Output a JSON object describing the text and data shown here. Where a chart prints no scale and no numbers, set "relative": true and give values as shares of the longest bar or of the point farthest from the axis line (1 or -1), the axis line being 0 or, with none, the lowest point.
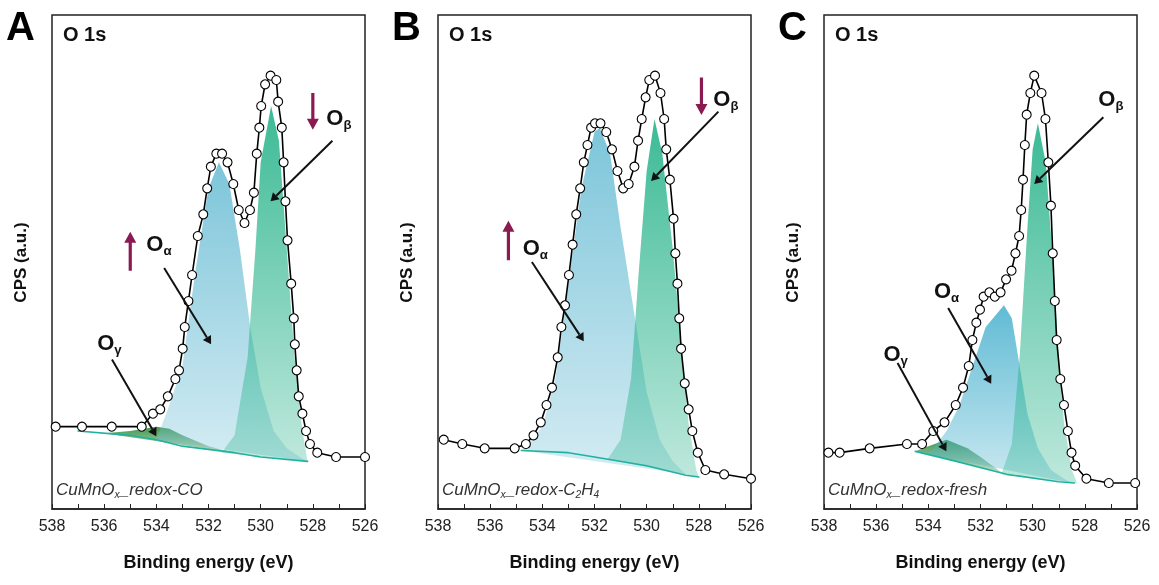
{
  "chart_data": [
    {
      "type": "line",
      "relative": true,
      "title": "O 1s",
      "xlabel": "Binding energy (eV)",
      "ylabel": "CPS (a.u.)",
      "xlim": [
        538,
        526
      ],
      "xticks": [
        538,
        {
          "value": 537,
          "label": null
        },
        536,
        {
          "value": 535,
          "label": null
        },
        534,
        {
          "value": 533,
          "label": null
        },
        532,
        {
          "value": 531,
          "label": null
        },
        530,
        {
          "value": 529,
          "label": null
        },
        528,
        {
          "value": 527,
          "label": null
        },
        526
      ],
      "tick_labels": "x",
      "grid": false,
      "legend": "top",
      "annotations": [
        "A",
        "CuMnO$_{x}$_redox-CO"
      ],
      "series": [
        {
          "type": "line",
          "marker": "none",
          "color": "#20b2a0",
          "x": [
            537,
            535,
            534,
            533,
            531,
            530,
            528.2
          ],
          "values": [
            0.18,
            0.17,
            0.16,
            0.145,
            0.13,
            0.12,
            0.11
          ]
        },
        {
          "type": "area",
          "name": "O$_{γ}$",
          "color": "#2e8b3a",
          "x": [
            536,
            535,
            534,
            533.5,
            533,
            532,
            531
          ],
          "values": [
            0.175,
            0.18,
            0.19,
            0.185,
            0.17,
            0.145,
            0.13
          ]
        },
        {
          "type": "area",
          "name": "O$_{α}$",
          "color": "#6fbfd6",
          "x": [
            534,
            533.5,
            533,
            532.5,
            532,
            531.6,
            531.2,
            530.8,
            530.4,
            530,
            529.5,
            529,
            528.5,
            528.2
          ],
          "values": [
            0.16,
            0.24,
            0.33,
            0.55,
            0.74,
            0.8,
            0.75,
            0.6,
            0.42,
            0.28,
            0.18,
            0.14,
            0.12,
            0.11
          ]
        },
        {
          "type": "area",
          "name": "O$_{β}$",
          "color": "#27b38a",
          "x": [
            531.5,
            531,
            530.5,
            530.2,
            530,
            529.6,
            529.3,
            529,
            528.7,
            528.4,
            528.2
          ],
          "values": [
            0.13,
            0.17,
            0.35,
            0.6,
            0.8,
            0.93,
            0.85,
            0.6,
            0.35,
            0.18,
            0.11
          ]
        },
        {
          "marker": "circle",
          "color": "#000000",
          "x": [
            537.86,
            536.85,
            535.71,
            534.56,
            534.13,
            533.85,
            533.56,
            533.27,
            533.13,
            532.99,
            532.91,
            532.77,
            532.63,
            532.41,
            532.2,
            532.05,
            531.91,
            531.7,
            531.48,
            531.27,
            531.05,
            530.84,
            530.62,
            530.41,
            530.26,
            530.15,
            530.05,
            529.98,
            529.83,
            529.62,
            529.4,
            529.33,
            529.19,
            529.12,
            529.05,
            528.97,
            528.83,
            528.73,
            528.69,
            528.62,
            528.54,
            528.4,
            528.26,
            528.11,
            527.83,
            527.11,
            526
          ],
          "values": [
            0.19,
            0.19,
            0.19,
            0.19,
            0.22,
            0.23,
            0.26,
            0.3,
            0.32,
            0.37,
            0.42,
            0.48,
            0.54,
            0.63,
            0.68,
            0.74,
            0.79,
            0.82,
            0.82,
            0.8,
            0.75,
            0.69,
            0.66,
            0.69,
            0.73,
            0.82,
            0.88,
            0.93,
            0.98,
            1,
            0.99,
            0.94,
            0.88,
            0.8,
            0.71,
            0.62,
            0.52,
            0.44,
            0.38,
            0.32,
            0.26,
            0.22,
            0.18,
            0.15,
            0.13,
            0.12,
            0.12
          ]
        }
      ]
    },
    {
      "type": "line",
      "relative": true,
      "title": "O 1s",
      "xlabel": "Binding energy (eV)",
      "ylabel": "CPS (a.u.)",
      "xlim": [
        538,
        526
      ],
      "xticks": [
        538,
        {
          "value": 537,
          "label": null
        },
        536,
        {
          "value": 535,
          "label": null
        },
        534,
        {
          "value": 533,
          "label": null
        },
        532,
        {
          "value": 531,
          "label": null
        },
        530,
        {
          "value": 529,
          "label": null
        },
        528,
        {
          "value": 527,
          "label": null
        },
        526
      ],
      "tick_labels": "x",
      "grid": false,
      "legend": "top",
      "annotations": [
        "B",
        "CuMnO$_{x}$_redox-C$_{2}$H$_{4}$"
      ],
      "series": [
        {
          "type": "line",
          "marker": "none",
          "color": "#20b2a0",
          "x": [
            534.8,
            533,
            532,
            530,
            528.5,
            528
          ],
          "values": [
            0.135,
            0.13,
            0.12,
            0.1,
            0.078,
            0.074
          ]
        },
        {
          "type": "area",
          "name": "O$_{α}$",
          "color": "#6fbfd6",
          "x": [
            534.8,
            534,
            533.5,
            533,
            532.5,
            532,
            531.8,
            531.4,
            531,
            530.5,
            530,
            529.5,
            529,
            528.5
          ],
          "values": [
            0.135,
            0.19,
            0.3,
            0.52,
            0.74,
            0.87,
            0.88,
            0.82,
            0.65,
            0.46,
            0.27,
            0.16,
            0.11,
            0.08
          ]
        },
        {
          "type": "area",
          "name": "O$_{β}$",
          "color": "#27b38a",
          "x": [
            531.5,
            531,
            530.6,
            530.3,
            530,
            529.7,
            529.4,
            529,
            528.7,
            528.4,
            528.1,
            528
          ],
          "values": [
            0.115,
            0.16,
            0.3,
            0.55,
            0.78,
            0.9,
            0.82,
            0.6,
            0.4,
            0.2,
            0.09,
            0.074
          ]
        },
        {
          "marker": "circle",
          "color": "#000000",
          "x": [
            537.78,
            537.07,
            536.21,
            535.06,
            534.63,
            534.34,
            534.06,
            533.84,
            533.63,
            533.41,
            533.27,
            533.13,
            532.98,
            532.84,
            532.7,
            532.55,
            532.41,
            532.27,
            532.13,
            531.98,
            531.77,
            531.55,
            531.33,
            531.12,
            530.9,
            530.69,
            530.47,
            530.33,
            530.19,
            530.04,
            529.9,
            529.68,
            529.47,
            529.33,
            529.25,
            529.11,
            528.97,
            528.9,
            528.82,
            528.75,
            528.68,
            528.54,
            528.39,
            528.25,
            528.04,
            527.75,
            527.03,
            526
          ],
          "values": [
            0.16,
            0.15,
            0.14,
            0.14,
            0.15,
            0.17,
            0.2,
            0.24,
            0.28,
            0.35,
            0.42,
            0.47,
            0.54,
            0.61,
            0.68,
            0.74,
            0.8,
            0.84,
            0.88,
            0.89,
            0.89,
            0.87,
            0.83,
            0.78,
            0.74,
            0.75,
            0.79,
            0.85,
            0.9,
            0.95,
            0.99,
            1,
            0.96,
            0.9,
            0.83,
            0.76,
            0.67,
            0.59,
            0.52,
            0.44,
            0.37,
            0.29,
            0.23,
            0.18,
            0.13,
            0.09,
            0.08,
            0.07
          ]
        }
      ]
    },
    {
      "type": "line",
      "relative": true,
      "title": "O 1s",
      "xlabel": "Binding energy (eV)",
      "ylabel": "CPS (a.u.)",
      "xlim": [
        538,
        526
      ],
      "xticks": [
        538,
        {
          "value": 537,
          "label": null
        },
        536,
        {
          "value": 535,
          "label": null
        },
        534,
        {
          "value": 533,
          "label": null
        },
        532,
        {
          "value": 531,
          "label": null
        },
        530,
        {
          "value": 529,
          "label": null
        },
        528,
        {
          "value": 527,
          "label": null
        },
        526
      ],
      "tick_labels": "x",
      "grid": false,
      "annotations": [
        "C",
        "CuMnO$_{x}$_redox-fresh"
      ],
      "series": [
        {
          "type": "line",
          "marker": "none",
          "color": "#20b2a0",
          "x": [
            534.5,
            533,
            531,
            529,
            528.4
          ],
          "values": [
            0.133,
            0.111,
            0.08,
            0.063,
            0.06
          ]
        },
        {
          "type": "area",
          "name": "O$_{γ}$",
          "color": "#2e8b3a",
          "x": [
            534.5,
            534,
            533.3,
            532.5,
            532,
            531.2
          ],
          "values": [
            0.133,
            0.145,
            0.16,
            0.14,
            0.12,
            0.085
          ]
        },
        {
          "type": "area",
          "name": "O$_{α}$",
          "color": "#4fb4d0",
          "x": [
            534,
            533.3,
            532.8,
            532.3,
            531.8,
            531.1,
            530.8,
            530.5,
            530.2,
            529.8,
            529.3,
            528.8,
            528.5
          ],
          "values": [
            0.126,
            0.18,
            0.24,
            0.33,
            0.42,
            0.47,
            0.44,
            0.33,
            0.22,
            0.14,
            0.09,
            0.07,
            0.06
          ]
        },
        {
          "type": "area",
          "name": "O$_{β}$",
          "color": "#27b38a",
          "x": [
            531.2,
            530.8,
            530.5,
            530.2,
            530,
            529.8,
            529.5,
            529.2,
            529,
            528.8,
            528.5,
            528.3
          ],
          "values": [
            0.08,
            0.15,
            0.35,
            0.65,
            0.83,
            0.89,
            0.8,
            0.55,
            0.35,
            0.2,
            0.09,
            0.06
          ]
        },
        {
          "marker": "circle",
          "color": "#000000",
          "x": [
            537.83,
            537.4,
            536.25,
            534.82,
            534.24,
            533.81,
            533.38,
            532.95,
            532.67,
            532.45,
            532.31,
            532.16,
            532.02,
            531.88,
            531.66,
            531.45,
            531.23,
            531.02,
            530.81,
            530.66,
            530.52,
            530.44,
            530.37,
            530.3,
            530.23,
            530.09,
            529.94,
            529.66,
            529.51,
            529.4,
            529.3,
            529.23,
            529.15,
            529.08,
            528.94,
            528.8,
            528.65,
            528.51,
            528.37,
            527.94,
            527.08,
            526.07
          ],
          "values": [
            0.13,
            0.13,
            0.14,
            0.15,
            0.15,
            0.18,
            0.2,
            0.24,
            0.28,
            0.33,
            0.39,
            0.43,
            0.46,
            0.49,
            0.5,
            0.49,
            0.5,
            0.53,
            0.55,
            0.59,
            0.63,
            0.69,
            0.76,
            0.84,
            0.91,
            0.96,
            1,
            0.96,
            0.9,
            0.8,
            0.7,
            0.59,
            0.48,
            0.39,
            0.3,
            0.24,
            0.18,
            0.13,
            0.1,
            0.07,
            0.06,
            0.06
          ]
        }
      ]
    }
  ]
}
